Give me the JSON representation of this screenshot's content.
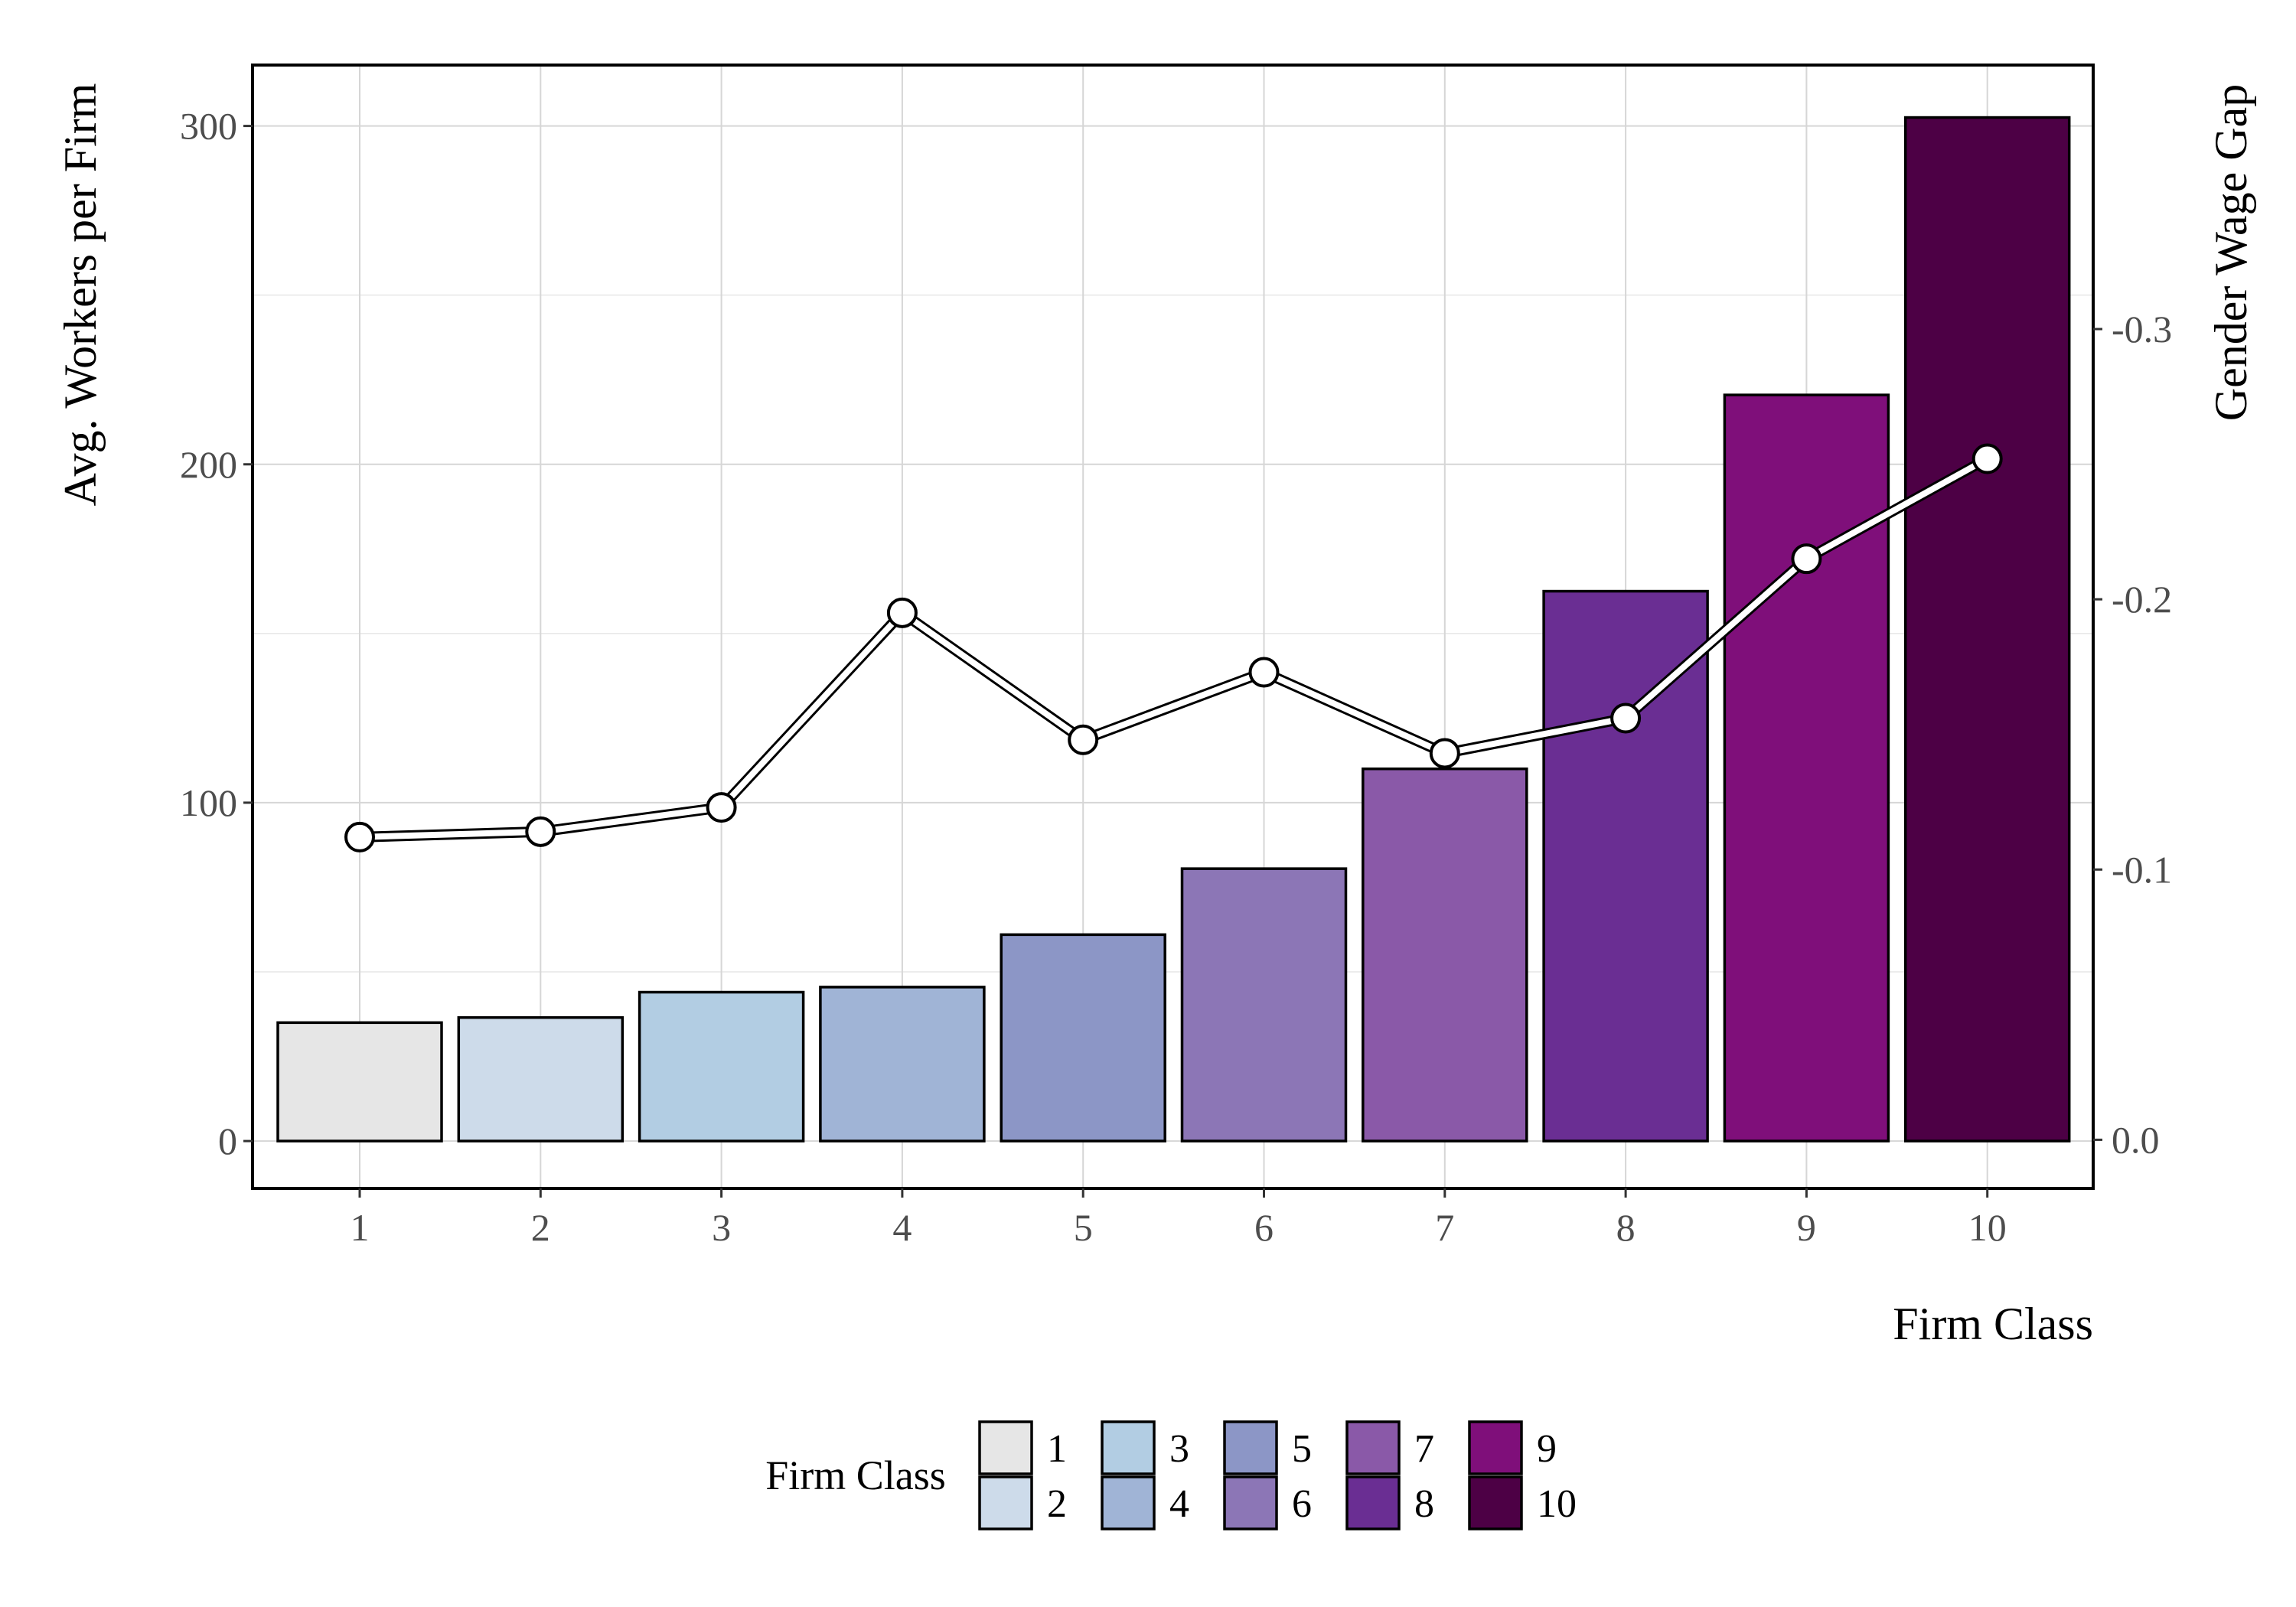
{
  "chart_data": {
    "type": "bar",
    "categories": [
      "1",
      "2",
      "3",
      "4",
      "5",
      "6",
      "7",
      "8",
      "9",
      "10"
    ],
    "series": [
      {
        "name": "Avg. Workers per Firm",
        "kind": "bar",
        "axis": "left",
        "values": [
          35,
          36.5,
          44,
          45.5,
          61,
          80.5,
          110,
          162.5,
          220.5,
          302.5
        ]
      },
      {
        "name": "Gender Wage Gap",
        "kind": "line",
        "axis": "right",
        "values": [
          -0.112,
          -0.114,
          -0.123,
          -0.195,
          -0.148,
          -0.173,
          -0.143,
          -0.156,
          -0.215,
          -0.252
        ]
      }
    ],
    "bar_colors": [
      "#e6e6e6",
      "#cddbea",
      "#b2cde3",
      "#a0b4d6",
      "#8c96c6",
      "#8c76b6",
      "#8a59a8",
      "#6a2e93",
      "#7f0f7a",
      "#4d0045"
    ],
    "title": "",
    "xlabel": "Firm Class",
    "ylabel": "Avg. Workers per Firm",
    "ylabel_right": "Gender Wage Gap",
    "ylim": [
      -14,
      318
    ],
    "ylim_right": [
      0.018,
      -0.3977
    ],
    "yticks": [
      "0",
      "100",
      "200",
      "300"
    ],
    "yticks_values": [
      0,
      100,
      200,
      300
    ],
    "yticks_right": [
      "0.0",
      "-0.1",
      "-0.2",
      "-0.3"
    ],
    "yticks_right_values": [
      0,
      -0.1,
      -0.2,
      -0.3
    ],
    "grid": true,
    "legend": {
      "title": "Firm Class",
      "placement": "bottom",
      "entries": [
        "1",
        "2",
        "3",
        "4",
        "5",
        "6",
        "7",
        "8",
        "9",
        "10"
      ]
    }
  }
}
